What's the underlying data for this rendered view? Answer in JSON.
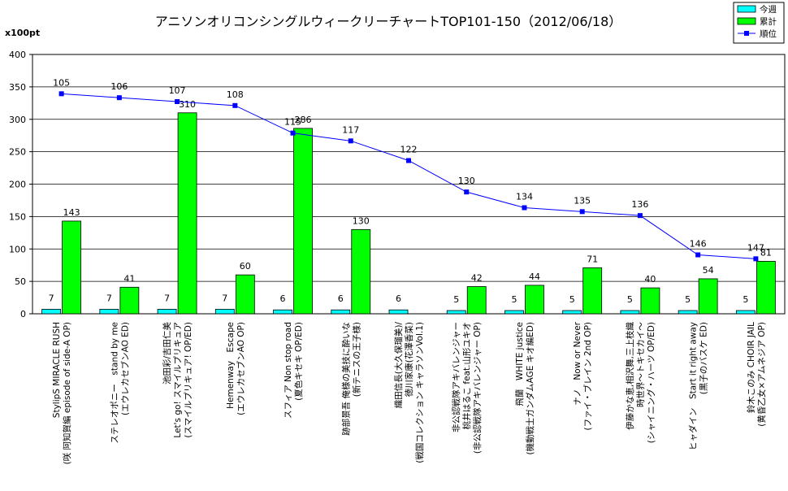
{
  "chart_data": {
    "type": "bar",
    "title": "アニソンオリコンシングルウィークリーチャートTOP101-150（2012/06/18）",
    "ylabel": "x100pt",
    "ylim": [
      0,
      400
    ],
    "yticks": [
      0,
      50,
      100,
      150,
      200,
      250,
      300,
      350,
      400
    ],
    "rank_scale": {
      "top_rank": 95,
      "bottom_rank": 161
    },
    "legend": {
      "position": "top-right",
      "entries": [
        "今週",
        "累計",
        "順位"
      ]
    },
    "categories": [
      [
        "StylipS  MIRACLE RUSH",
        "(咲 阿知賀編 episode of side-A OP)"
      ],
      [
        "ステレオポニー　stand by me",
        "(エウレカセブンAO ED)"
      ],
      [
        "池田彩/吉田仁美",
        "Let's go! スマイルプリキュア",
        "(スマイルプリキュア! OP/ED)"
      ],
      [
        "Hemenway　Escape",
        "(エウレカセブンAO OP)"
      ],
      [
        "スフィア  Non stop road",
        "(夏色キセキ OP/ED)"
      ],
      [
        "跡部景吾  俺様の美技に酔いな",
        "(新テニスの王子様)"
      ],
      [
        "織田信長(大久保瑠美)/",
        "徳川家康(花澤香菜)",
        "(戦国コレクション キャラソンVol.1)"
      ],
      [
        "非公認戦隊アキバレンジャー",
        "桃井はるこ feat.山形ユキオ",
        "(非公認戦隊アキバレンジャー OP)"
      ],
      [
        "飛蘭　WHITE justice",
        "(機動戦士ガンダムAGE キオ編ED)"
      ],
      [
        "ナノ　Now or Never",
        "(ファイ・ブレイン 2nd OP)"
      ],
      [
        "伊藤かな恵,相沢舞,三上枝織",
        "時世界〜トキセカイ〜",
        "(シャイニング・ハーツ OP/ED)"
      ],
      [
        "ヒャダイン　Start it right away",
        "(黒子のバスケ ED)"
      ],
      [
        "鈴木このみ  CHOIR JAIL",
        "(黄昏乙女×アムネジア OP)"
      ]
    ],
    "series": [
      {
        "name": "今週",
        "type": "bar",
        "color": "#00ffff",
        "values": [
          7,
          7,
          7,
          7,
          6,
          6,
          6,
          5,
          5,
          5,
          5,
          5,
          5
        ]
      },
      {
        "name": "累計",
        "type": "bar",
        "color": "#00ff00",
        "values": [
          143,
          41,
          310,
          60,
          286,
          130,
          null,
          42,
          44,
          71,
          40,
          54,
          81
        ]
      },
      {
        "name": "順位",
        "type": "line",
        "color": "#0000ff",
        "values": [
          105,
          106,
          107,
          108,
          115,
          117,
          122,
          130,
          134,
          135,
          136,
          146,
          147
        ]
      }
    ]
  }
}
